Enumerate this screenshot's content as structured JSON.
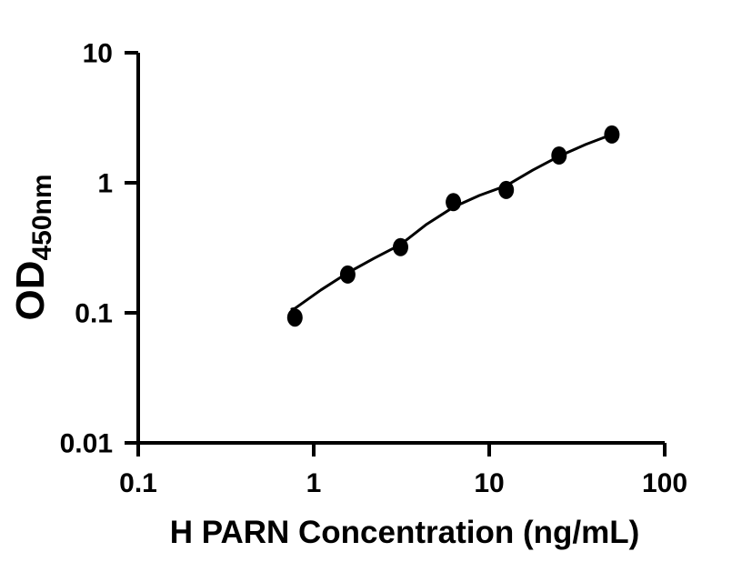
{
  "figure": {
    "background_color": "#ffffff",
    "axis_color": "#000000",
    "marker_color": "#000000",
    "curve_color": "#000000"
  },
  "chart_data": {
    "type": "scatter",
    "title": "",
    "xlabel": "H PARN Concentration (ng/mL)",
    "ylabel_main": "OD",
    "ylabel_sub": "450nm",
    "x_scale": "log",
    "y_scale": "log",
    "xlim": [
      0.1,
      100
    ],
    "ylim": [
      0.01,
      10
    ],
    "x_ticks": [
      0.1,
      1,
      10,
      100
    ],
    "x_tick_labels": [
      "0.1",
      "1",
      "10",
      "100"
    ],
    "y_ticks": [
      0.01,
      0.1,
      1,
      10
    ],
    "y_tick_labels": [
      "0.01",
      "0.1",
      "1",
      "10"
    ],
    "grid": false,
    "legend": false,
    "series": [
      {
        "name": "standard-points",
        "type": "scatter",
        "x": [
          0.781,
          1.563,
          3.125,
          6.25,
          12.5,
          25,
          50
        ],
        "y": [
          0.092,
          0.197,
          0.32,
          0.71,
          0.88,
          1.62,
          2.35
        ]
      },
      {
        "name": "fitted-curve",
        "type": "line",
        "x": [
          0.75,
          0.781,
          1.1,
          1.563,
          2.2,
          3.125,
          4.4,
          6.25,
          8.8,
          12.5,
          17.7,
          25,
          35.4,
          50
        ],
        "y": [
          0.107,
          0.108,
          0.15,
          0.203,
          0.262,
          0.335,
          0.48,
          0.65,
          0.8,
          0.95,
          1.25,
          1.6,
          1.97,
          2.35
        ]
      }
    ]
  }
}
